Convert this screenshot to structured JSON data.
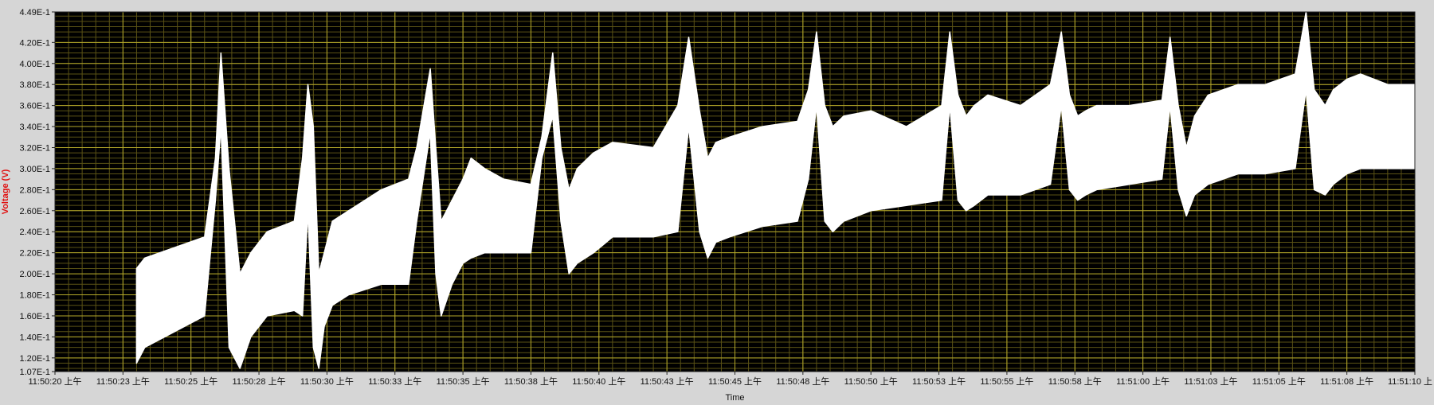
{
  "chart_data": {
    "type": "line",
    "title": "",
    "xlabel": "Time",
    "ylabel": "Voltage (V)",
    "ylim": [
      0.107,
      0.449
    ],
    "xlim_seconds": [
      0,
      50
    ],
    "y_ticks": [
      "4.49E-1",
      "4.20E-1",
      "4.00E-1",
      "3.80E-1",
      "3.60E-1",
      "3.40E-1",
      "3.20E-1",
      "3.00E-1",
      "2.80E-1",
      "2.60E-1",
      "2.40E-1",
      "2.20E-1",
      "2.00E-1",
      "1.80E-1",
      "1.60E-1",
      "1.40E-1",
      "1.20E-1",
      "1.07E-1"
    ],
    "y_tick_values": [
      0.449,
      0.42,
      0.4,
      0.38,
      0.36,
      0.34,
      0.32,
      0.3,
      0.28,
      0.26,
      0.24,
      0.22,
      0.2,
      0.18,
      0.16,
      0.14,
      0.12,
      0.107
    ],
    "x_ticks": [
      "11:50:20 上午",
      "11:50:23 上午",
      "11:50:25 上午",
      "11:50:28 上午",
      "11:50:30 上午",
      "11:50:33 上午",
      "11:50:35 上午",
      "11:50:38 上午",
      "11:50:40 上午",
      "11:50:43 上午",
      "11:50:45 上午",
      "11:50:48 上午",
      "11:50:50 上午",
      "11:50:53 上午",
      "11:50:55 上午",
      "11:50:58 上午",
      "11:51:00 上午",
      "11:51:03 上午",
      "11:51:05 上午",
      "11:51:08 上午",
      "11:51:10 上"
    ],
    "x_tick_seconds": [
      0,
      2.5,
      5,
      7.5,
      10,
      12.5,
      15,
      17.5,
      20,
      22.5,
      25,
      27.5,
      30,
      32.5,
      35,
      37.5,
      40,
      42.5,
      45,
      47.5,
      50
    ],
    "grid": true,
    "colors": {
      "plot_bg": "#000000",
      "grid": "#b5a92a",
      "signal": "#ffffff",
      "ylabel": "#e01010",
      "frame": "#d6d6d6"
    },
    "series": [
      {
        "x": [
          3.0,
          3.3,
          5.5,
          5.9,
          6.1,
          6.4,
          6.8,
          7.2,
          7.8,
          8.8,
          9.1,
          9.3,
          9.5,
          9.7,
          9.9,
          10.2,
          10.8,
          12.0,
          13.0,
          13.3,
          13.8,
          14.0,
          14.2,
          14.6,
          15.0,
          15.3,
          15.8,
          16.5,
          17.5,
          17.9,
          18.3,
          18.6,
          18.9,
          19.2,
          19.8,
          20.5,
          22.0,
          22.9,
          23.3,
          23.7,
          24.0,
          24.3,
          24.8,
          26.0,
          27.3,
          27.7,
          28.0,
          28.3,
          28.6,
          29.0,
          30.0,
          31.3,
          32.6,
          32.9,
          33.2,
          33.5,
          33.8,
          34.3,
          35.5,
          36.6,
          37.0,
          37.3,
          37.6,
          37.9,
          38.3,
          39.5,
          40.7,
          41.0,
          41.3,
          41.6,
          41.9,
          42.4,
          43.5,
          44.5,
          45.6,
          46.0,
          46.3,
          46.7,
          47.0,
          47.5,
          48.0,
          49.0,
          50.0
        ],
        "y_upper": [
          0.205,
          0.215,
          0.235,
          0.31,
          0.41,
          0.3,
          0.2,
          0.22,
          0.24,
          0.25,
          0.31,
          0.38,
          0.34,
          0.2,
          0.22,
          0.25,
          0.26,
          0.28,
          0.29,
          0.32,
          0.395,
          0.32,
          0.25,
          0.27,
          0.29,
          0.31,
          0.3,
          0.29,
          0.285,
          0.33,
          0.41,
          0.32,
          0.28,
          0.3,
          0.315,
          0.325,
          0.32,
          0.36,
          0.425,
          0.355,
          0.31,
          0.325,
          0.33,
          0.34,
          0.345,
          0.375,
          0.43,
          0.36,
          0.34,
          0.35,
          0.355,
          0.34,
          0.36,
          0.43,
          0.37,
          0.35,
          0.36,
          0.37,
          0.36,
          0.38,
          0.43,
          0.37,
          0.35,
          0.355,
          0.36,
          0.36,
          0.365,
          0.425,
          0.36,
          0.32,
          0.35,
          0.37,
          0.38,
          0.38,
          0.39,
          0.449,
          0.375,
          0.36,
          0.375,
          0.385,
          0.39,
          0.38,
          0.38
        ],
        "y_lower": [
          0.115,
          0.13,
          0.16,
          0.27,
          0.34,
          0.13,
          0.11,
          0.14,
          0.16,
          0.165,
          0.16,
          0.26,
          0.13,
          0.11,
          0.15,
          0.17,
          0.18,
          0.19,
          0.19,
          0.25,
          0.335,
          0.2,
          0.16,
          0.19,
          0.21,
          0.215,
          0.22,
          0.22,
          0.22,
          0.31,
          0.35,
          0.25,
          0.2,
          0.21,
          0.22,
          0.235,
          0.235,
          0.24,
          0.34,
          0.24,
          0.215,
          0.23,
          0.235,
          0.245,
          0.25,
          0.29,
          0.36,
          0.25,
          0.24,
          0.25,
          0.26,
          0.265,
          0.27,
          0.36,
          0.27,
          0.26,
          0.265,
          0.275,
          0.275,
          0.285,
          0.36,
          0.28,
          0.27,
          0.275,
          0.28,
          0.285,
          0.29,
          0.36,
          0.28,
          0.255,
          0.275,
          0.285,
          0.295,
          0.295,
          0.3,
          0.375,
          0.28,
          0.275,
          0.285,
          0.295,
          0.3,
          0.3,
          0.3
        ]
      }
    ]
  }
}
